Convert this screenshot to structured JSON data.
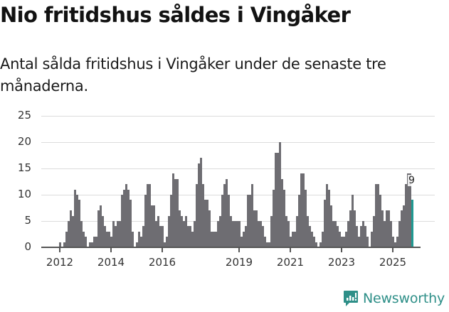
{
  "header": {
    "title": "Nio fritidshus såldes i Vingåker",
    "subtitle": "Antal sålda fritidshus i Vingåker under de senaste tre månaderna."
  },
  "footer": {
    "brand": "Newsworthy",
    "brand_color": "#2e8f88"
  },
  "colors": {
    "bar": "#6e6d72",
    "highlight": "#1f9a92",
    "grid": "#dcdcdc"
  },
  "chart_data": {
    "type": "bar",
    "title": "Nio fritidshus såldes i Vingåker",
    "subtitle": "Antal sålda fritidshus i Vingåker under de senaste tre månaderna.",
    "xlabel": "",
    "ylabel": "",
    "ylim": [
      0,
      25
    ],
    "yticks": [
      0,
      5,
      10,
      15,
      20,
      25
    ],
    "xtick_labels": [
      "2012",
      "2014",
      "2016",
      "2019",
      "2021",
      "2023",
      "2025"
    ],
    "grid": true,
    "legend": null,
    "start": "2012-01",
    "end": "2025-10",
    "frequency": "monthly",
    "highlight": {
      "index": 165,
      "label": "9",
      "value": 9
    },
    "values": [
      1,
      0,
      1,
      3,
      5,
      7,
      6,
      11,
      10,
      9,
      5,
      3,
      2,
      0,
      1,
      1,
      2,
      2,
      7,
      8,
      6,
      4,
      3,
      3,
      2,
      5,
      4,
      5,
      5,
      10,
      11,
      12,
      11,
      9,
      3,
      0,
      1,
      3,
      2,
      4,
      10,
      12,
      12,
      8,
      8,
      5,
      6,
      4,
      4,
      1,
      2,
      6,
      10,
      14,
      13,
      13,
      7,
      6,
      5,
      6,
      4,
      4,
      3,
      5,
      12,
      16,
      17,
      12,
      9,
      9,
      7,
      3,
      3,
      3,
      5,
      6,
      10,
      12,
      13,
      10,
      6,
      5,
      5,
      5,
      5,
      2,
      3,
      4,
      10,
      10,
      12,
      7,
      7,
      5,
      5,
      4,
      2,
      1,
      1,
      6,
      11,
      18,
      18,
      20,
      13,
      11,
      6,
      5,
      2,
      3,
      3,
      6,
      10,
      14,
      14,
      11,
      6,
      4,
      3,
      2,
      1,
      0,
      1,
      3,
      9,
      12,
      11,
      8,
      5,
      5,
      4,
      3,
      2,
      2,
      3,
      5,
      7,
      10,
      7,
      4,
      2,
      4,
      5,
      4,
      2,
      0,
      3,
      6,
      12,
      12,
      10,
      7,
      5,
      7,
      7,
      5,
      2,
      1,
      2,
      5,
      7,
      8,
      12,
      14,
      14,
      9
    ]
  }
}
